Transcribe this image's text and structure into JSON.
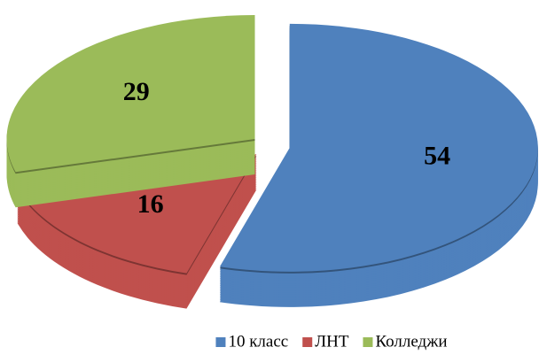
{
  "chart_data": {
    "type": "pie",
    "categories": [
      "10 класс",
      "ЛНТ",
      "Колледжи"
    ],
    "values": [
      54,
      16,
      29
    ],
    "colors": [
      "#4f81bd",
      "#c0504d",
      "#9bbb59"
    ],
    "legend": "bottom"
  }
}
